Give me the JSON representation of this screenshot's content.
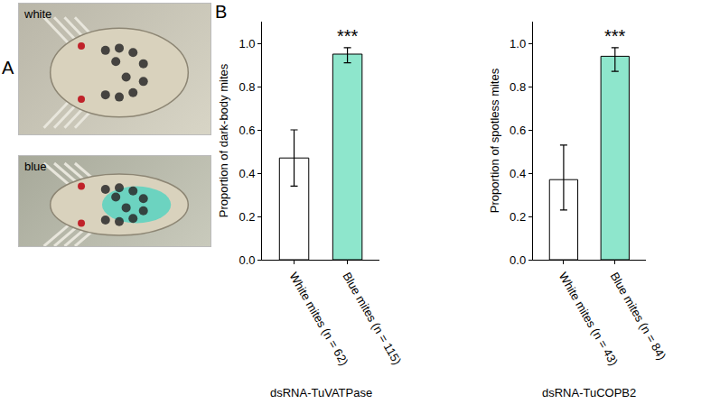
{
  "panel_labels": [
    "A",
    "B"
  ],
  "photos": [
    {
      "label": "white"
    },
    {
      "label": "blue"
    }
  ],
  "chart_data": [
    {
      "type": "bar",
      "categories": [
        "White mites (n = 62)",
        "Blue mites (n = 115)"
      ],
      "values": [
        0.47,
        0.95
      ],
      "error_plus": [
        0.13,
        0.03
      ],
      "error_minus": [
        0.13,
        0.04
      ],
      "colors": [
        "#ffffff",
        "#8ee6cc"
      ],
      "y_label": "Proportion of dark-body mites",
      "x_label": "dsRNA-TuVATPase",
      "ylim": [
        0,
        1.1
      ],
      "yticks": [
        {
          "value": 0,
          "label": "0.0"
        },
        0.2,
        0.4,
        0.6,
        0.8,
        {
          "value": 1,
          "label": "1.0"
        }
      ],
      "grid": false,
      "annotations": [
        {
          "category": "Blue mites (n = 115)",
          "text": "***"
        }
      ]
    },
    {
      "type": "bar",
      "categories": [
        "White mites (n = 43)",
        "Blue mites (n = 84)"
      ],
      "values": [
        0.37,
        0.94
      ],
      "error_plus": [
        0.16,
        0.04
      ],
      "error_minus": [
        0.14,
        0.07
      ],
      "colors": [
        "#ffffff",
        "#8ee6cc"
      ],
      "y_label": "Proportion of spotless mites",
      "x_label": "dsRNA-TuCOPB2",
      "ylim": [
        0,
        1.1
      ],
      "yticks": [
        {
          "value": 0,
          "label": "0.0"
        },
        0.2,
        0.4,
        0.6,
        0.8,
        {
          "value": 1,
          "label": "1.0"
        }
      ],
      "grid": false,
      "annotations": [
        {
          "category": "Blue mites (n = 84)",
          "text": "***"
        }
      ]
    }
  ]
}
